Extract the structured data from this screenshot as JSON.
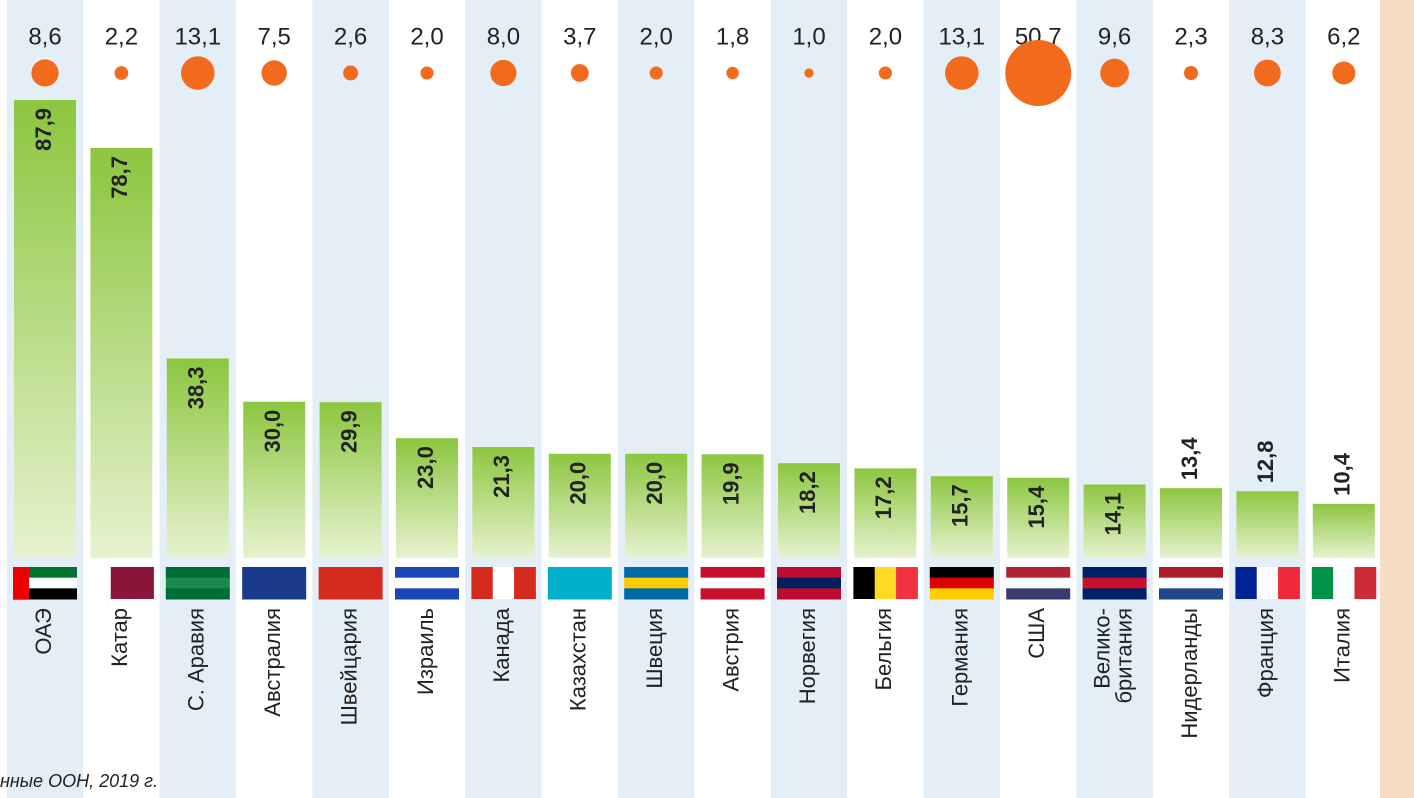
{
  "chart_data": {
    "type": "bar",
    "categories": [
      "ОАЭ",
      "Катар",
      "С. Аравия",
      "Австралия",
      "Швейцария",
      "Израиль",
      "Канада",
      "Казахстан",
      "Швеция",
      "Австрия",
      "Норвегия",
      "Бельгия",
      "Германия",
      "США",
      [
        "Велико-",
        "британия"
      ],
      "Нидерланды",
      "Франция",
      "Италия"
    ],
    "series": [
      {
        "type": "bar",
        "color": "#8cc63f",
        "values": [
          87.9,
          78.7,
          38.3,
          30.0,
          29.9,
          23.0,
          21.3,
          20.0,
          20.0,
          19.9,
          18.2,
          17.2,
          15.7,
          15.4,
          14.1,
          13.4,
          12.8,
          10.4
        ],
        "value_labels": [
          "87,9",
          "78,7",
          "38,3",
          "30,0",
          "29,9",
          "23,0",
          "21,3",
          "20,0",
          "20,0",
          "19,9",
          "18,2",
          "17,2",
          "15,7",
          "15,4",
          "14,1",
          "13,4",
          "12,8",
          "10,4"
        ]
      },
      {
        "type": "bubble",
        "color": "#f26b1d",
        "values": [
          8.6,
          2.2,
          13.1,
          7.5,
          2.6,
          2.0,
          8.0,
          3.7,
          2.0,
          1.8,
          1.0,
          2.0,
          13.1,
          50.7,
          9.6,
          2.3,
          8.3,
          6.2
        ],
        "value_labels": [
          "8,6",
          "2,2",
          "13,1",
          "7,5",
          "2,6",
          "2,0",
          "8,0",
          "3,7",
          "2,0",
          "1,8",
          "1,0",
          "2,0",
          "13,1",
          "50,7",
          "9,6",
          "2,3",
          "8,3",
          "6,2"
        ]
      }
    ],
    "source": "нные ООН, 2019 г."
  }
}
